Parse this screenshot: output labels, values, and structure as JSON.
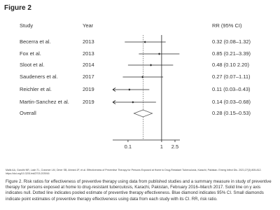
{
  "header": {
    "title": "Figure 2"
  },
  "chart_data": {
    "type": "forest",
    "column_headers": {
      "study": "Study",
      "year": "Year",
      "estimate": "RR (95% CI)"
    },
    "studies": [
      "Becerra et al.",
      "Fox et al.",
      "Sloot et al.",
      "Saudeners et al.",
      "Reichler et al.",
      "Martin-Sanchez et al.",
      "Overall"
    ],
    "years": [
      "2013",
      "2013",
      "2014",
      "2017",
      "2019",
      "2019",
      null
    ],
    "rr": [
      0.32,
      0.85,
      0.48,
      0.27,
      0.11,
      0.14,
      0.28
    ],
    "ci_lower": [
      0.08,
      0.21,
      0.1,
      0.07,
      0.03,
      0.03,
      0.15
    ],
    "ci_upper": [
      1.32,
      3.39,
      2.2,
      1.11,
      0.43,
      0.68,
      0.53
    ],
    "ci_labels": [
      "0.32 (0.08–1.32)",
      "0.85 (0.21–3.39)",
      "0.48 (0.10  2.20)",
      "0.27 (0.07–1.11)",
      "0.11 (0.03–0.43)",
      "0.14 (0.03–0.68)",
      "0.28 (0.15–0.53)"
    ],
    "log_x": true,
    "xlim": [
      0.035,
      3.5
    ],
    "xticks": [
      0.1,
      1,
      2.5
    ],
    "null_line": 1
  },
  "citation": "Malik AA, Gandhi NR, Lash TL, Cranmer LM, Omer SB, Ahmed JF, et al. Effectiveness of Preventive Therapy for Persons Exposed at Home to Drug-Resistant Tuberculosis, Karachi, Pakistan. Emerg Infect Dis. 2021;27(3):805-812. https://doi.org/10.3201/eid2703.203916",
  "caption": "Figure 2. Risk ratios for effectiveness of preventive therapy using data from published studies and a summary measure in study of preventive therapy for persons exposed at home to drug-resistant tuberculosis, Karachi, Pakistan, February 2016–March 2017. Solid line on y axis indicates null. Dotted line indicates pooled estimate of preventive therapy effectiveness. Blue diamond indicates 95% CI. Small diamonds indicate point estimates of preventive therapy effectiveness using data from each study with its CI. RR, risk ratio."
}
